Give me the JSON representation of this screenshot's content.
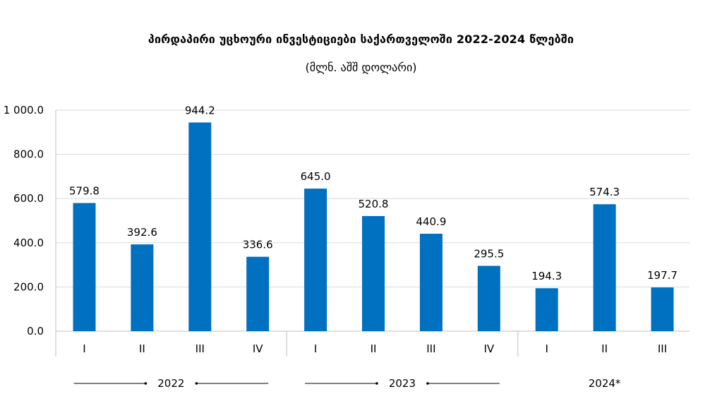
{
  "chart_data": {
    "type": "bar",
    "title": "პირდაპირი უცხოური ინვესტიციები საქართველოში 2022-2024 წლებში",
    "subtitle": "(მლნ. აშშ დოლარი)",
    "xlabel": "",
    "ylabel": "",
    "ylim": [
      0,
      1000
    ],
    "yticks": [
      "0.0",
      "200.0",
      "400.0",
      "600.0",
      "800.0",
      "1 000.0"
    ],
    "grid": true,
    "bar_color": "#0070c0",
    "categories": [
      "I",
      "II",
      "III",
      "IV",
      "I",
      "II",
      "III",
      "IV",
      "I",
      "II",
      "III"
    ],
    "values": [
      579.8,
      392.6,
      944.2,
      336.6,
      645.0,
      520.8,
      440.9,
      295.5,
      194.3,
      574.3,
      197.7
    ],
    "value_labels": [
      "579.8",
      "392.6",
      "944.2",
      "336.6",
      "645.0",
      "520.8",
      "440.9",
      "295.5",
      "194.3",
      "574.3",
      "197.7"
    ],
    "groups": [
      {
        "label": "2022",
        "count": 4
      },
      {
        "label": "2023",
        "count": 4
      },
      {
        "label": "2024*",
        "count": 3
      }
    ]
  }
}
